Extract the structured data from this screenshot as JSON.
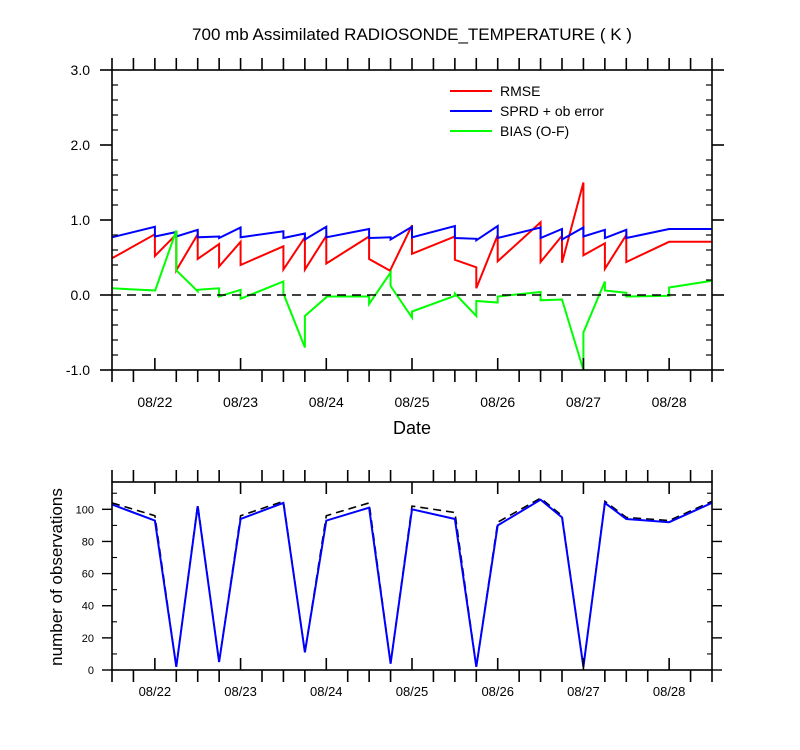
{
  "chart_data": [
    {
      "type": "line",
      "title": "700 mb Assimilated RADIOSONDE_TEMPERATURE ( K )",
      "xlabel": "Date",
      "ylabel": "",
      "x_tick_labels": [
        "08/22",
        "08/23",
        "08/24",
        "08/25",
        "08/26",
        "08/27",
        "08/28"
      ],
      "y_tick_labels": [
        "3.0",
        "2.0",
        "1.0",
        "0.0",
        "-1.0"
      ],
      "ylim": [
        -1.0,
        3.0
      ],
      "xlim": [
        -0.5,
        6.5
      ],
      "legend_position": "top-right",
      "reference_line": {
        "y": 0.0,
        "style": "dashed"
      },
      "series": [
        {
          "name": "RMSE",
          "color": "#ff0000",
          "x": [
            -0.5,
            0,
            0,
            0.25,
            0.25,
            0.5,
            0.5,
            0.75,
            0.75,
            1,
            1,
            1.5,
            1.5,
            1.75,
            1.75,
            2,
            2,
            2.5,
            2.5,
            2.75,
            2.75,
            3,
            3,
            3.5,
            3.5,
            3.75,
            3.75,
            4,
            4,
            4.5,
            4.5,
            4.75,
            4.75,
            5,
            5,
            5.25,
            5.25,
            5.5,
            5.5,
            6,
            6,
            6.5
          ],
          "y": [
            0.49,
            0.81,
            0.52,
            0.81,
            0.33,
            0.81,
            0.48,
            0.68,
            0.38,
            0.71,
            0.4,
            0.65,
            0.34,
            0.77,
            0.34,
            0.79,
            0.42,
            0.78,
            0.48,
            0.32,
            0.34,
            0.93,
            0.55,
            0.78,
            0.47,
            0.37,
            0.09,
            0.8,
            0.45,
            0.97,
            0.44,
            0.79,
            0.43,
            1.5,
            0.53,
            0.69,
            0.35,
            0.8,
            0.44,
            0.71,
            0.71,
            0.71
          ]
        },
        {
          "name": "SPRD + ob error",
          "color": "#0000ff",
          "x": [
            -0.5,
            0,
            0,
            0.25,
            0.25,
            0.5,
            0.5,
            0.75,
            0.75,
            1,
            1,
            1.5,
            1.5,
            1.75,
            1.75,
            2,
            2,
            2.5,
            2.5,
            2.75,
            2.75,
            3,
            3,
            3.5,
            3.5,
            3.75,
            3.75,
            4,
            4,
            4.5,
            4.5,
            4.75,
            4.75,
            5,
            5,
            5.25,
            5.25,
            5.5,
            5.5,
            6,
            6,
            6.5
          ],
          "y": [
            0.77,
            0.91,
            0.78,
            0.84,
            0.78,
            0.87,
            0.77,
            0.78,
            0.76,
            0.9,
            0.77,
            0.85,
            0.76,
            0.82,
            0.74,
            0.91,
            0.77,
            0.88,
            0.76,
            0.77,
            0.74,
            0.91,
            0.77,
            0.92,
            0.76,
            0.75,
            0.73,
            0.92,
            0.76,
            0.9,
            0.76,
            0.88,
            0.74,
            0.9,
            0.78,
            0.87,
            0.76,
            0.87,
            0.76,
            0.88,
            0.88,
            0.88
          ]
        },
        {
          "name": "BIAS (O-F)",
          "color": "#00ff00",
          "x": [
            -0.5,
            0,
            0,
            0.25,
            0.25,
            0.5,
            0.5,
            0.75,
            0.75,
            1,
            1,
            1.5,
            1.5,
            1.75,
            1.75,
            2,
            2,
            2.5,
            2.5,
            2.75,
            2.75,
            3,
            3,
            3.5,
            3.5,
            3.75,
            3.75,
            4,
            4,
            4.5,
            4.5,
            4.75,
            4.75,
            5,
            5,
            5.25,
            5.25,
            5.5,
            5.5,
            6,
            6,
            6.5
          ],
          "y": [
            0.09,
            0.06,
            0.05,
            0.86,
            0.33,
            0.05,
            0.07,
            0.09,
            -0.02,
            0.07,
            -0.05,
            0.18,
            0.02,
            -0.7,
            -0.28,
            -0.03,
            -0.02,
            -0.02,
            -0.12,
            0.3,
            0.12,
            -0.3,
            -0.22,
            -0.01,
            0.02,
            -0.28,
            -0.08,
            -0.1,
            -0.02,
            0.04,
            -0.07,
            -0.06,
            -0.06,
            -1.0,
            -0.5,
            0.18,
            0.06,
            0.03,
            -0.02,
            -0.01,
            0.1,
            0.19
          ]
        }
      ]
    },
    {
      "type": "line",
      "title": "",
      "xlabel": "",
      "ylabel": "number of observations",
      "x_tick_labels": [
        "08/22",
        "08/23",
        "08/24",
        "08/25",
        "08/26",
        "08/27",
        "08/28"
      ],
      "y_tick_labels": [
        "100",
        "80",
        "60",
        "40",
        "20",
        "0"
      ],
      "ylim": [
        0,
        117
      ],
      "xlim": [
        -0.5,
        6.5
      ],
      "series": [
        {
          "color": "#000000",
          "style": "dashed",
          "x": [
            -0.5,
            0,
            0.25,
            0.5,
            0.75,
            1,
            1.5,
            1.75,
            2,
            2.5,
            2.75,
            3,
            3.5,
            3.75,
            4,
            4.5,
            4.75,
            5,
            5.25,
            5.5,
            6,
            6.5
          ],
          "y": [
            104,
            96,
            2,
            103,
            5,
            96,
            105,
            11,
            96,
            104,
            4,
            102,
            98,
            2,
            92,
            107,
            96,
            2,
            105,
            95,
            93,
            105
          ]
        },
        {
          "color": "#0000ff",
          "style": "solid",
          "x": [
            -0.5,
            0,
            0.25,
            0.5,
            0.75,
            1,
            1.5,
            1.75,
            2,
            2.5,
            2.75,
            3,
            3.5,
            3.75,
            4,
            4.5,
            4.75,
            5,
            5.25,
            5.5,
            6,
            6.5
          ],
          "y": [
            103,
            93,
            2,
            102,
            5,
            94,
            104,
            11,
            93,
            101,
            4,
            100,
            94,
            2,
            90,
            106,
            95,
            2,
            104,
            94,
            92,
            104
          ]
        }
      ]
    }
  ]
}
